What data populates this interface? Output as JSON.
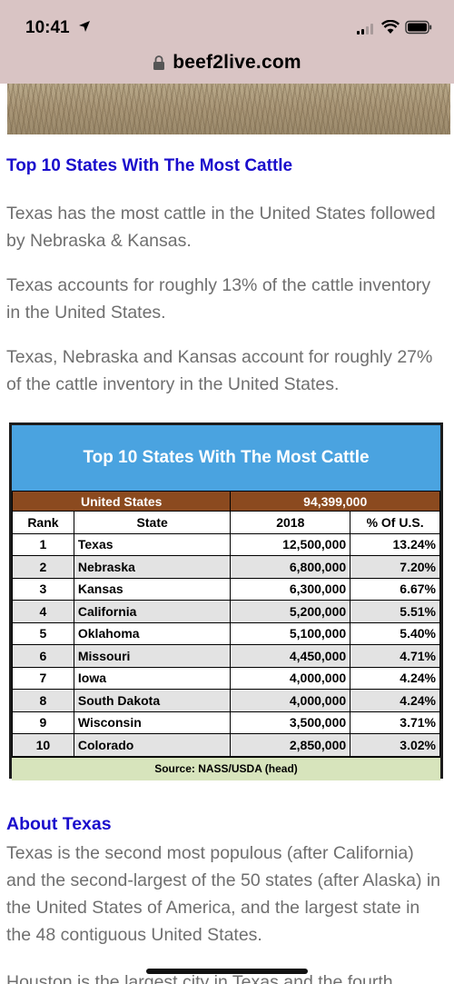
{
  "status_bar": {
    "time": "10:41"
  },
  "browser": {
    "url": "beef2live.com"
  },
  "article": {
    "heading": "Top 10 States With The Most Cattle",
    "paragraphs": [
      "Texas has the most cattle in the United States followed by Nebraska & Kansas.",
      "Texas accounts for roughly 13% of the cattle inventory in the United States.",
      "Texas, Nebraska and Kansas account for roughly 27% of the cattle inventory in the United States."
    ],
    "about_heading": "About Texas",
    "about_paragraph": "Texas is the second most populous (after California) and the second-largest of the 50 states (after Alaska) in the United States of America, and the largest state in the 48 contiguous United States.",
    "next_paragraph_partial": "Houston is the largest city in Texas and the fourth"
  },
  "table": {
    "title": "Top 10 States With The Most Cattle",
    "total_label": "United States",
    "total_value": "94,399,000",
    "headers": {
      "rank": "Rank",
      "state": "State",
      "year": "2018",
      "pct": "% Of U.S."
    },
    "rows": [
      {
        "rank": "1",
        "state": "Texas",
        "value": "12,500,000",
        "pct": "13.24%"
      },
      {
        "rank": "2",
        "state": "Nebraska",
        "value": "6,800,000",
        "pct": "7.20%"
      },
      {
        "rank": "3",
        "state": "Kansas",
        "value": "6,300,000",
        "pct": "6.67%"
      },
      {
        "rank": "4",
        "state": "California",
        "value": "5,200,000",
        "pct": "5.51%"
      },
      {
        "rank": "5",
        "state": "Oklahoma",
        "value": "5,100,000",
        "pct": "5.40%"
      },
      {
        "rank": "6",
        "state": "Missouri",
        "value": "4,450,000",
        "pct": "4.71%"
      },
      {
        "rank": "7",
        "state": "Iowa",
        "value": "4,000,000",
        "pct": "4.24%"
      },
      {
        "rank": "8",
        "state": "South Dakota",
        "value": "4,000,000",
        "pct": "4.24%"
      },
      {
        "rank": "9",
        "state": "Wisconsin",
        "value": "3,500,000",
        "pct": "3.71%"
      },
      {
        "rank": "10",
        "state": "Colorado",
        "value": "2,850,000",
        "pct": "3.02%"
      }
    ],
    "source": "Source: NASS/USDA (head)"
  },
  "colors": {
    "link_blue": "#1a0dcc",
    "banner_blue": "#4aa3e0",
    "total_row_brown": "#8b4a1f",
    "source_row_green": "#d7e4bc",
    "status_bar_bg": "#d9c4c4"
  }
}
